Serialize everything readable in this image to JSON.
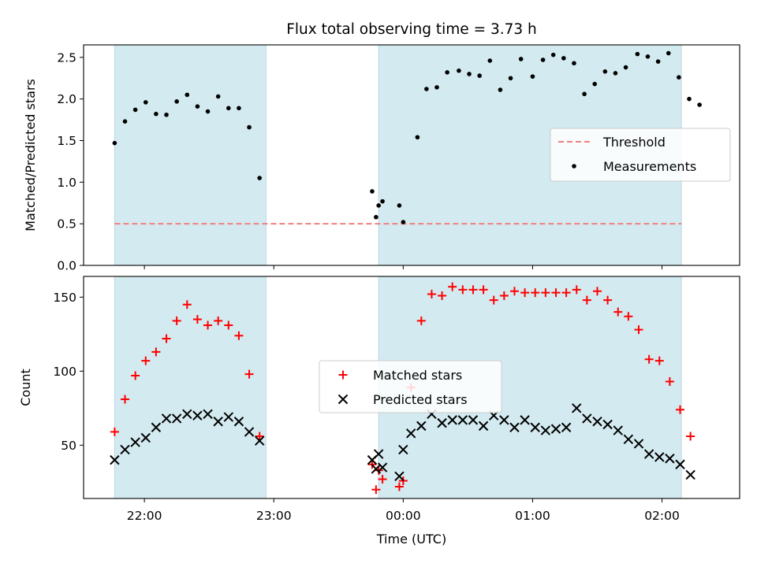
{
  "figure": {
    "title": "Flux total observing time = 3.73 h",
    "xlabel": "Time (UTC)",
    "x_unit": "hours since 21:00 UTC",
    "x_tick_labels": [
      "22:00",
      "23:00",
      "00:00",
      "01:00",
      "02:00"
    ],
    "x_ticks": [
      1,
      2,
      3,
      4,
      5
    ],
    "x_range": [
      0.53,
      5.6
    ],
    "shaded_intervals": [
      [
        0.77,
        1.94
      ],
      [
        2.81,
        5.15
      ]
    ],
    "shade_color": "#d3eaf0",
    "shade_edge_color": "#bcd7e0"
  },
  "chart_data": [
    {
      "type": "scatter",
      "panel": "top",
      "ylabel": "Matched/Predicted stars",
      "ylim": [
        0,
        2.65
      ],
      "yticks": [
        0.0,
        0.5,
        1.0,
        1.5,
        2.0,
        2.5
      ],
      "ytick_labels": [
        "0.0",
        "0.5",
        "1.0",
        "1.5",
        "2.0",
        "2.5"
      ],
      "legend": {
        "placement": "right",
        "entries": [
          "Threshold",
          "Measurements"
        ]
      },
      "threshold": {
        "name": "Threshold",
        "value": 0.5,
        "color": "#f08080",
        "style": "dashed",
        "x_range": [
          0.77,
          5.15
        ]
      },
      "series": [
        {
          "name": "Measurements",
          "color": "#000000",
          "marker": "dot",
          "points": [
            [
              0.77,
              1.47
            ],
            [
              0.85,
              1.73
            ],
            [
              0.93,
              1.87
            ],
            [
              1.01,
              1.96
            ],
            [
              1.09,
              1.82
            ],
            [
              1.17,
              1.81
            ],
            [
              1.25,
              1.97
            ],
            [
              1.33,
              2.05
            ],
            [
              1.41,
              1.91
            ],
            [
              1.49,
              1.85
            ],
            [
              1.57,
              2.03
            ],
            [
              1.65,
              1.89
            ],
            [
              1.73,
              1.89
            ],
            [
              1.81,
              1.66
            ],
            [
              1.89,
              1.05
            ],
            [
              2.76,
              0.89
            ],
            [
              2.81,
              0.72
            ],
            [
              2.79,
              0.58
            ],
            [
              2.84,
              0.77
            ],
            [
              2.97,
              0.72
            ],
            [
              3.0,
              0.52
            ],
            [
              3.11,
              1.54
            ],
            [
              3.18,
              2.12
            ],
            [
              3.26,
              2.14
            ],
            [
              3.34,
              2.32
            ],
            [
              3.43,
              2.34
            ],
            [
              3.51,
              2.3
            ],
            [
              3.59,
              2.28
            ],
            [
              3.67,
              2.46
            ],
            [
              3.75,
              2.11
            ],
            [
              3.83,
              2.25
            ],
            [
              3.91,
              2.48
            ],
            [
              4.0,
              2.27
            ],
            [
              4.08,
              2.47
            ],
            [
              4.16,
              2.53
            ],
            [
              4.24,
              2.49
            ],
            [
              4.32,
              2.43
            ],
            [
              4.4,
              2.06
            ],
            [
              4.48,
              2.18
            ],
            [
              4.56,
              2.33
            ],
            [
              4.64,
              2.31
            ],
            [
              4.72,
              2.38
            ],
            [
              4.81,
              2.54
            ],
            [
              4.89,
              2.51
            ],
            [
              4.97,
              2.45
            ],
            [
              5.05,
              2.55
            ],
            [
              5.13,
              2.26
            ],
            [
              5.21,
              2.0
            ],
            [
              5.29,
              1.93
            ]
          ]
        }
      ]
    },
    {
      "type": "scatter",
      "panel": "bottom",
      "ylabel": "Count",
      "ylim": [
        14,
        164
      ],
      "yticks": [
        50,
        100,
        150
      ],
      "ytick_labels": [
        "50",
        "100",
        "150"
      ],
      "legend": {
        "placement": "center",
        "entries": [
          "Matched stars",
          "Predicted stars"
        ]
      },
      "series": [
        {
          "name": "Matched stars",
          "color": "#ff0000",
          "marker": "plus",
          "points": [
            [
              0.77,
              59
            ],
            [
              0.85,
              81
            ],
            [
              0.93,
              97
            ],
            [
              1.01,
              107
            ],
            [
              1.09,
              113
            ],
            [
              1.17,
              122
            ],
            [
              1.25,
              134
            ],
            [
              1.33,
              145
            ],
            [
              1.41,
              135
            ],
            [
              1.49,
              131
            ],
            [
              1.57,
              134
            ],
            [
              1.65,
              131
            ],
            [
              1.73,
              124
            ],
            [
              1.81,
              98
            ],
            [
              1.89,
              56
            ],
            [
              2.76,
              37
            ],
            [
              2.81,
              33
            ],
            [
              2.79,
              20
            ],
            [
              2.84,
              27
            ],
            [
              2.97,
              22
            ],
            [
              3.0,
              26
            ],
            [
              3.06,
              89
            ],
            [
              3.14,
              134
            ],
            [
              3.22,
              152
            ],
            [
              3.3,
              151
            ],
            [
              3.38,
              157
            ],
            [
              3.46,
              155
            ],
            [
              3.54,
              155
            ],
            [
              3.62,
              155
            ],
            [
              3.7,
              148
            ],
            [
              3.78,
              151
            ],
            [
              3.86,
              154
            ],
            [
              3.94,
              153
            ],
            [
              4.02,
              153
            ],
            [
              4.1,
              153
            ],
            [
              4.18,
              153
            ],
            [
              4.26,
              153
            ],
            [
              4.34,
              155
            ],
            [
              4.42,
              148
            ],
            [
              4.5,
              154
            ],
            [
              4.58,
              148
            ],
            [
              4.66,
              140
            ],
            [
              4.74,
              137
            ],
            [
              4.82,
              128
            ],
            [
              4.9,
              108
            ],
            [
              4.98,
              107
            ],
            [
              5.06,
              93
            ],
            [
              5.14,
              74
            ],
            [
              5.22,
              56
            ]
          ]
        },
        {
          "name": "Predicted stars",
          "color": "#000000",
          "marker": "x",
          "points": [
            [
              0.77,
              40
            ],
            [
              0.85,
              47
            ],
            [
              0.93,
              52
            ],
            [
              1.01,
              55
            ],
            [
              1.09,
              62
            ],
            [
              1.17,
              68
            ],
            [
              1.25,
              68
            ],
            [
              1.33,
              71
            ],
            [
              1.41,
              70
            ],
            [
              1.49,
              71
            ],
            [
              1.57,
              66
            ],
            [
              1.65,
              69
            ],
            [
              1.73,
              66
            ],
            [
              1.81,
              59
            ],
            [
              1.89,
              53
            ],
            [
              2.76,
              40
            ],
            [
              2.81,
              44
            ],
            [
              2.79,
              34
            ],
            [
              2.84,
              35
            ],
            [
              2.97,
              29
            ],
            [
              3.0,
              47
            ],
            [
              3.06,
              58
            ],
            [
              3.14,
              63
            ],
            [
              3.22,
              71
            ],
            [
              3.3,
              65
            ],
            [
              3.38,
              67
            ],
            [
              3.46,
              67
            ],
            [
              3.54,
              67
            ],
            [
              3.62,
              63
            ],
            [
              3.7,
              70
            ],
            [
              3.78,
              67
            ],
            [
              3.86,
              62
            ],
            [
              3.94,
              67
            ],
            [
              4.02,
              62
            ],
            [
              4.1,
              60
            ],
            [
              4.18,
              61
            ],
            [
              4.26,
              62
            ],
            [
              4.34,
              75
            ],
            [
              4.42,
              68
            ],
            [
              4.5,
              66
            ],
            [
              4.58,
              64
            ],
            [
              4.66,
              60
            ],
            [
              4.74,
              54
            ],
            [
              4.82,
              51
            ],
            [
              4.9,
              44
            ],
            [
              4.98,
              42
            ],
            [
              5.06,
              41
            ],
            [
              5.14,
              37
            ],
            [
              5.22,
              30
            ]
          ]
        }
      ]
    }
  ]
}
